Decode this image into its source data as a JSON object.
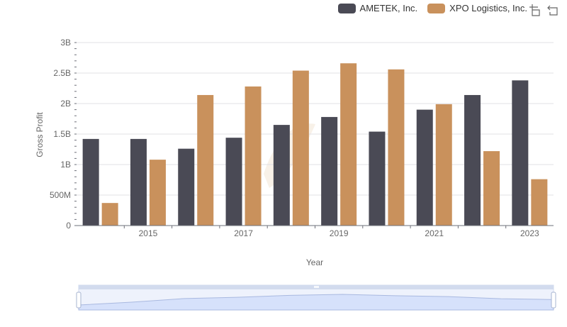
{
  "colors": {
    "ametek": "#4a4a55",
    "xpo": "#c9915c",
    "grid": "#e0e0e6",
    "slider_fill": "#d6e1fb",
    "slider_border": "#c9d3ea"
  },
  "toolbox": {
    "zoom_icon": "data-zoom-icon",
    "restore_icon": "restore-icon"
  },
  "chart_data": {
    "type": "bar",
    "categories": [
      "2014",
      "2015",
      "2016",
      "2017",
      "2018",
      "2019",
      "2020",
      "2021",
      "2022",
      "2023"
    ],
    "x_tick_labels": [
      "2015",
      "2017",
      "2019",
      "2021",
      "2023"
    ],
    "series": [
      {
        "name": "AMETEK, Inc.",
        "values": [
          1420000000,
          1420000000,
          1260000000,
          1440000000,
          1650000000,
          1780000000,
          1540000000,
          1900000000,
          2140000000,
          2380000000
        ]
      },
      {
        "name": "XPO Logistics, Inc.",
        "values": [
          370000000,
          1080000000,
          2140000000,
          2280000000,
          2540000000,
          2660000000,
          2560000000,
          1990000000,
          1220000000,
          760000000
        ]
      }
    ],
    "y_tick_labels": [
      "0",
      "500M",
      "1B",
      "1.5B",
      "2B",
      "2.5B",
      "3B"
    ],
    "ylim": [
      0,
      3000000000
    ],
    "xlabel": "Year",
    "ylabel": "Gross Profit",
    "grid": true,
    "legend_position": "top-right"
  }
}
